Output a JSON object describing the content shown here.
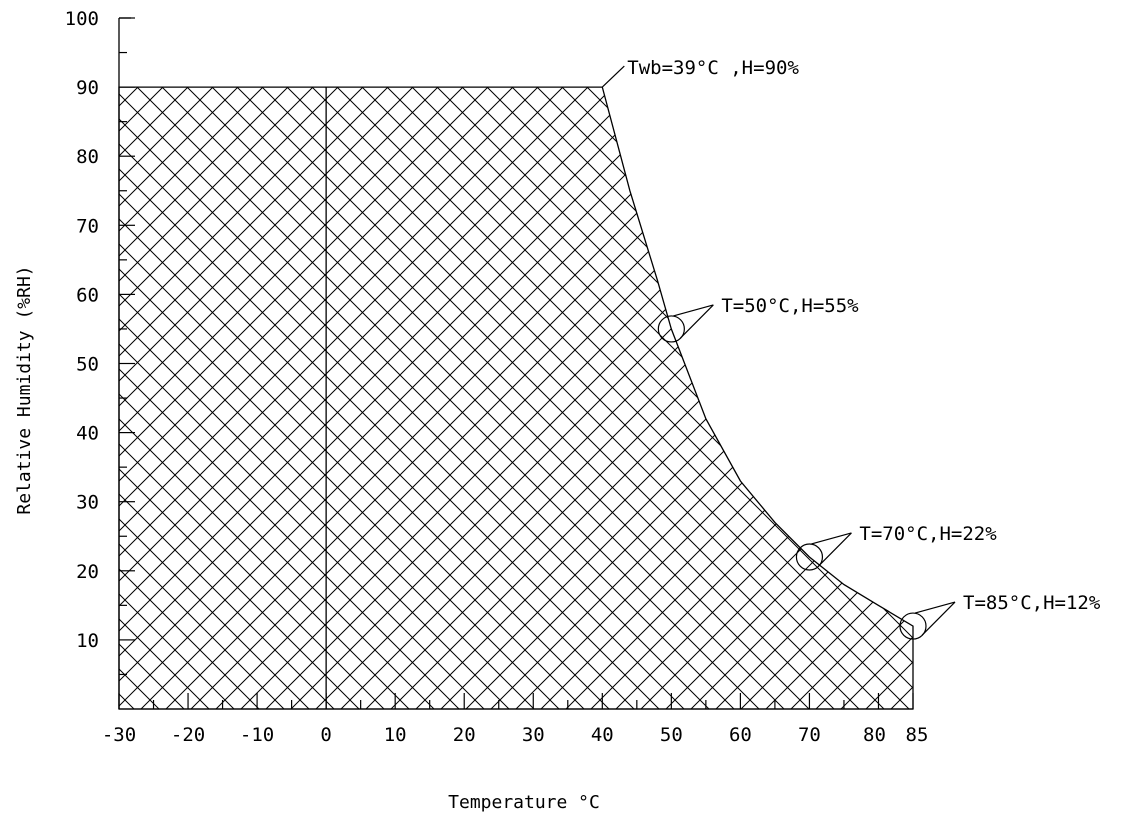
{
  "chart_data": {
    "type": "area",
    "xlabel": "Temperature °C",
    "ylabel": "Relative Humidity (%RH)",
    "x_ticks": [
      "-30",
      "-20",
      "-10",
      "0",
      "10",
      "20",
      "30",
      "40",
      "50",
      "60",
      "70",
      "80",
      "85"
    ],
    "y_ticks": [
      "10",
      "20",
      "30",
      "40",
      "50",
      "60",
      "70",
      "80",
      "90",
      "100"
    ],
    "xlim": [
      -30,
      85
    ],
    "ylim": [
      0,
      100
    ],
    "grid": false,
    "fill": "cross-hatch",
    "boundary": [
      {
        "x": -30,
        "y": 0
      },
      {
        "x": -30,
        "y": 90
      },
      {
        "x": 40,
        "y": 90
      },
      {
        "x": 44,
        "y": 75
      },
      {
        "x": 48,
        "y": 62
      },
      {
        "x": 50,
        "y": 55
      },
      {
        "x": 55,
        "y": 42
      },
      {
        "x": 60,
        "y": 33
      },
      {
        "x": 65,
        "y": 27
      },
      {
        "x": 70,
        "y": 22
      },
      {
        "x": 75,
        "y": 18
      },
      {
        "x": 80,
        "y": 15
      },
      {
        "x": 85,
        "y": 12
      },
      {
        "x": 85,
        "y": 0
      }
    ],
    "vertical_reference_x": 0,
    "annotations": [
      {
        "text": "Twb=39°C ,H=90%",
        "x": 40,
        "y": 90,
        "circled": false
      },
      {
        "text": "T=50°C,H=55%",
        "x": 50,
        "y": 55,
        "circled": true
      },
      {
        "text": "T=70°C,H=22%",
        "x": 70,
        "y": 22,
        "circled": true
      },
      {
        "text": "T=85°C,H=12%",
        "x": 85,
        "y": 12,
        "circled": true
      }
    ]
  }
}
